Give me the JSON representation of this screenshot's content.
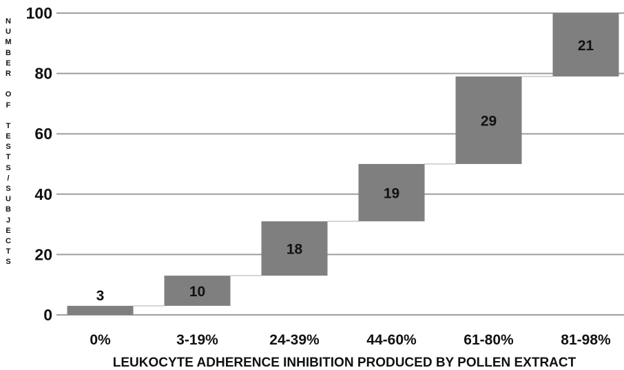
{
  "chart_data": {
    "type": "waterfall",
    "title": "",
    "xlabel": "LEUKOCYTE ADHERENCE INHIBITION PRODUCED BY POLLEN EXTRACT",
    "ylabel": "NUMBER OF TESTS/SUBJECTS",
    "ylim": [
      0,
      100
    ],
    "yticks": [
      0,
      20,
      40,
      60,
      80,
      100
    ],
    "grid": true,
    "categories": [
      "0%",
      "3-19%",
      "24-39%",
      "44-60%",
      "61-80%",
      "81-98%"
    ],
    "values": [
      3,
      10,
      18,
      19,
      29,
      21
    ],
    "colors": {
      "bar": "#7f7f7f",
      "grid": "#9e9e9e",
      "connector": "#c8c8c8",
      "text": "#111111"
    }
  }
}
